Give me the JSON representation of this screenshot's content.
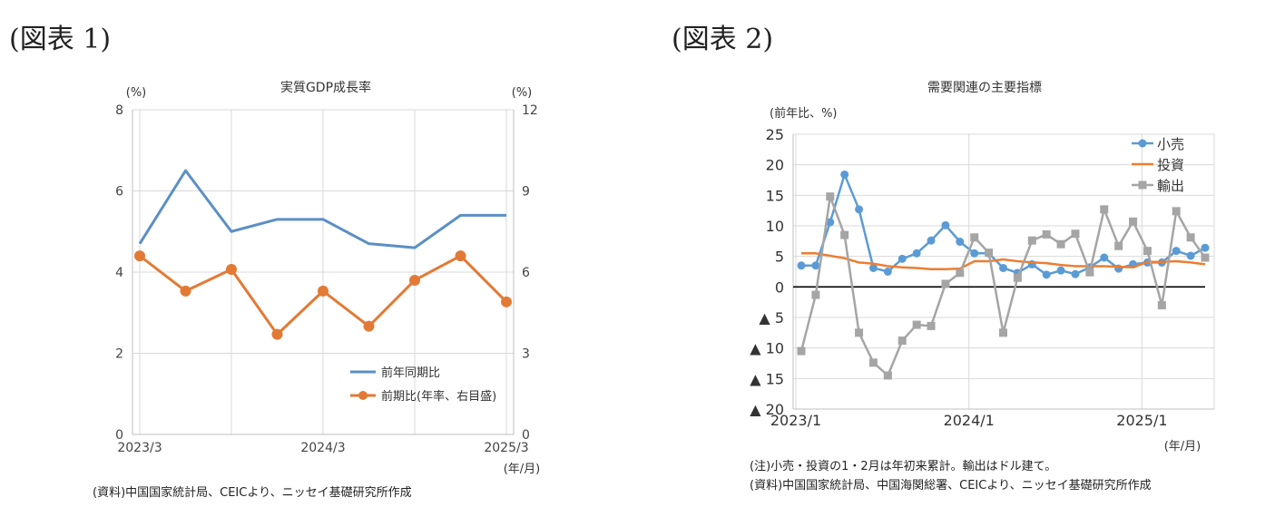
{
  "figure1": {
    "label": "(図表 1)",
    "source": "(資料)中国国家統計局、CEICより、ニッセイ基礎研究所作成",
    "chart_data": {
      "type": "line",
      "title": "実質GDP成長率",
      "y_unit_left": "(%)",
      "y_unit_right": "(%)",
      "x_unit": "(年/月)",
      "x": [
        "2023/3",
        "2023/6",
        "2023/9",
        "2023/12",
        "2024/3",
        "2024/6",
        "2024/9",
        "2024/12",
        "2025/3"
      ],
      "x_tick_labels": [
        "2023/3",
        "2024/3",
        "2025/3"
      ],
      "ylim_left": [
        0,
        8
      ],
      "yticks_left": [
        0,
        2,
        4,
        6,
        8
      ],
      "ylim_right": [
        0,
        12
      ],
      "yticks_right": [
        0,
        3,
        6,
        9,
        12
      ],
      "grid": true,
      "legend_position": "bottom-right",
      "series": [
        {
          "name": "前年同期比",
          "axis": "left",
          "color": "#5b8fc5",
          "values": [
            4.7,
            6.5,
            5.0,
            5.3,
            5.3,
            4.7,
            4.6,
            5.4,
            5.4
          ]
        },
        {
          "name": "前期比(年率、右目盛)",
          "axis": "right",
          "color": "#e27a35",
          "values": [
            6.6,
            5.3,
            6.1,
            3.7,
            5.3,
            4.0,
            5.7,
            6.6,
            4.9
          ]
        }
      ]
    }
  },
  "figure2": {
    "label": "(図表 2)",
    "note": "(注)小売・投資の1・2月は年初来累計。輸出はドル建て。",
    "source": "(資料)中国国家統計局、中国海関総署、CEICより、ニッセイ基礎研究所作成",
    "chart_data": {
      "type": "line",
      "title": "需要関連の主要指標",
      "y_unit": "(前年比、%)",
      "x_unit": "(年/月)",
      "x_tick_labels": [
        "2023/1",
        "2024/1",
        "2025/1"
      ],
      "ylim": [
        -20,
        25
      ],
      "yticks": [
        25,
        20,
        15,
        10,
        5,
        0,
        -5,
        -10,
        -15,
        -20
      ],
      "ytick_labels": [
        "25",
        "20",
        "15",
        "10",
        "5",
        "0",
        "▲ 5",
        "▲ 10",
        "▲ 15",
        "▲ 20"
      ],
      "grid": true,
      "legend_position": "top-right",
      "x": [
        "2023/1",
        "2023/2",
        "2023/3",
        "2023/4",
        "2023/5",
        "2023/6",
        "2023/7",
        "2023/8",
        "2023/9",
        "2023/10",
        "2023/11",
        "2023/12",
        "2024/1",
        "2024/2",
        "2024/3",
        "2024/4",
        "2024/5",
        "2024/6",
        "2024/7",
        "2024/8",
        "2024/9",
        "2024/10",
        "2024/11",
        "2024/12",
        "2025/1",
        "2025/2",
        "2025/3",
        "2025/4",
        "2025/5"
      ],
      "series": [
        {
          "name": "小売",
          "color": "#5b9bd5",
          "marker": "circle",
          "values": [
            3.5,
            3.5,
            10.6,
            18.4,
            12.7,
            3.1,
            2.5,
            4.6,
            5.5,
            7.6,
            10.1,
            7.4,
            5.5,
            5.5,
            3.1,
            2.3,
            3.7,
            2.0,
            2.7,
            2.1,
            3.2,
            4.8,
            3.0,
            3.7,
            4.0,
            4.0,
            5.9,
            5.1,
            6.4
          ]
        },
        {
          "name": "投資",
          "color": "#ed7d31",
          "marker": "none",
          "values": [
            5.5,
            5.5,
            5.1,
            4.7,
            4.0,
            3.8,
            3.4,
            3.2,
            3.1,
            2.9,
            2.9,
            3.0,
            4.2,
            4.2,
            4.5,
            4.2,
            4.0,
            3.9,
            3.6,
            3.4,
            3.4,
            3.4,
            3.3,
            3.2,
            4.1,
            4.1,
            4.2,
            4.0,
            3.7
          ]
        },
        {
          "name": "輸出",
          "color": "#a5a5a5",
          "marker": "square",
          "values": [
            -10.5,
            -1.3,
            14.8,
            8.5,
            -7.5,
            -12.4,
            -14.5,
            -8.8,
            -6.2,
            -6.4,
            0.5,
            2.3,
            8.1,
            5.6,
            -7.5,
            1.5,
            7.6,
            8.6,
            7.0,
            8.7,
            2.4,
            12.7,
            6.7,
            10.7,
            5.9,
            -3.0,
            12.4,
            8.1,
            4.8
          ]
        }
      ]
    }
  }
}
